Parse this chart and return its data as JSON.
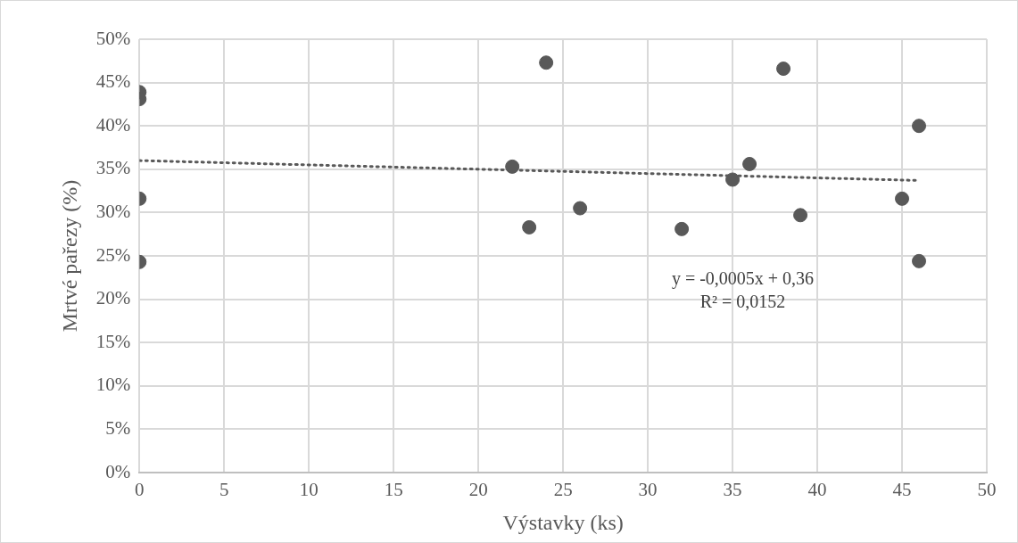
{
  "chart_data": {
    "type": "scatter",
    "xlabel": "Výstavky (ks)",
    "ylabel": "Mrtvé pařezy (%)",
    "xlim": [
      0,
      50
    ],
    "xticks": [
      0,
      5,
      10,
      15,
      20,
      25,
      30,
      35,
      40,
      45,
      50
    ],
    "ylim": [
      0,
      50
    ],
    "yticks": [
      {
        "value": 0,
        "label": "0%"
      },
      {
        "value": 5,
        "label": "5%"
      },
      {
        "value": 10,
        "label": "10%"
      },
      {
        "value": 15,
        "label": "15%"
      },
      {
        "value": 20,
        "label": "20%"
      },
      {
        "value": 25,
        "label": "25%"
      },
      {
        "value": 30,
        "label": "30%"
      },
      {
        "value": 35,
        "label": "35%"
      },
      {
        "value": 40,
        "label": "40%"
      },
      {
        "value": 45,
        "label": "45%"
      },
      {
        "value": 50,
        "label": "50%"
      }
    ],
    "grid": true,
    "legend": false,
    "marker": "circle",
    "series": [
      {
        "color": "#595959",
        "x": [
          0,
          0,
          0,
          0,
          22,
          23,
          24,
          26,
          32,
          35,
          36,
          38,
          39,
          45,
          46,
          46
        ],
        "values": [
          43.9,
          43.1,
          31.6,
          24.3,
          35.3,
          28.3,
          47.3,
          30.5,
          28.1,
          33.8,
          35.6,
          46.6,
          29.7,
          31.6,
          40.0,
          24.4
        ]
      },
      {
        "type": "line",
        "color": "#595959",
        "line_style": "dotted",
        "marker": "none",
        "x": [
          0,
          46
        ],
        "values": [
          36,
          33.7
        ]
      }
    ],
    "annotations": [
      "y = -0,0005x + 0,36",
      "R² = 0,0152"
    ]
  }
}
